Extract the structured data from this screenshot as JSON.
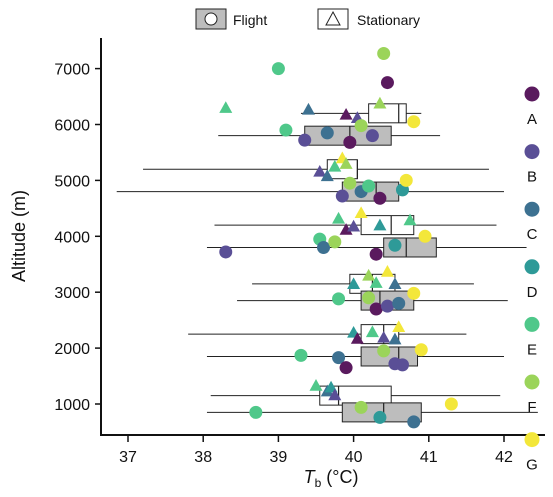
{
  "legend": {
    "flight_label": "Flight",
    "stationary_label": "Stationary"
  },
  "colors": {
    "A": "#5a1a5e",
    "B": "#5a4f96",
    "C": "#3d7191",
    "D": "#2e9a98",
    "E": "#4fc88a",
    "F": "#9bd45a",
    "G": "#f3e73a",
    "box_flight": "#bdbdbd",
    "box_stationary": "#ffffff"
  },
  "chart_data": {
    "type": "box",
    "xlabel": "T",
    "xlabel_sub": "b",
    "xlabel_unit": " (°C)",
    "ylabel": "Altitude (m)",
    "xlim": [
      36.6,
      42.6
    ],
    "ylim": [
      500,
      7500
    ],
    "x_ticks": [
      37,
      38,
      39,
      40,
      41,
      42
    ],
    "y_ticks": [
      1000,
      2000,
      3000,
      4000,
      5000,
      6000,
      7000
    ],
    "group_legend": {
      "labels": [
        "A",
        "B",
        "C",
        "D",
        "E",
        "F",
        "G"
      ],
      "markers": [
        "A",
        "B",
        "C",
        "D",
        "E",
        "F",
        "G"
      ]
    },
    "boxes": [
      {
        "mode": "stationary",
        "y": 1150,
        "whisker_low": 38.1,
        "q1": 39.55,
        "median": 39.8,
        "q3": 40.5,
        "whisker_high": 41.95
      },
      {
        "mode": "flight",
        "y": 850,
        "whisker_low": 38.05,
        "q1": 39.85,
        "median": 40.4,
        "q3": 40.9,
        "whisker_high": 42.45
      },
      {
        "mode": "stationary",
        "y": 2250,
        "whisker_low": 37.8,
        "q1": 40.1,
        "median": 40.4,
        "q3": 40.6,
        "whisker_high": 41.5
      },
      {
        "mode": "flight",
        "y": 1850,
        "whisker_low": 38.05,
        "q1": 40.1,
        "median": 40.6,
        "q3": 40.85,
        "whisker_high": 42.0
      },
      {
        "mode": "stationary",
        "y": 3150,
        "whisker_low": 38.65,
        "q1": 39.95,
        "median": 40.25,
        "q3": 40.55,
        "whisker_high": 41.6
      },
      {
        "mode": "flight",
        "y": 2850,
        "whisker_low": 38.45,
        "q1": 40.1,
        "median": 40.35,
        "q3": 40.8,
        "whisker_high": 42.05
      },
      {
        "mode": "stationary",
        "y": 4200,
        "whisker_low": 38.15,
        "q1": 40.1,
        "median": 40.5,
        "q3": 40.8,
        "whisker_high": 41.9
      },
      {
        "mode": "flight",
        "y": 3800,
        "whisker_low": 38.05,
        "q1": 40.4,
        "median": 40.7,
        "q3": 41.1,
        "whisker_high": 42.3
      },
      {
        "mode": "stationary",
        "y": 5200,
        "whisker_low": 37.2,
        "q1": 39.65,
        "median": 40.05,
        "q3": 40.05,
        "whisker_high": 41.8
      },
      {
        "mode": "flight",
        "y": 4800,
        "whisker_low": 36.85,
        "q1": 39.85,
        "median": 40.3,
        "q3": 40.6,
        "whisker_high": 42.0
      },
      {
        "mode": "stationary",
        "y": 6200,
        "whisker_low": 39.3,
        "q1": 40.2,
        "median": 40.6,
        "q3": 40.7,
        "whisker_high": 40.9
      },
      {
        "mode": "flight",
        "y": 5800,
        "whisker_low": 38.2,
        "q1": 39.35,
        "median": 39.95,
        "q3": 40.5,
        "whisker_high": 41.15
      }
    ],
    "points_flight": [
      {
        "x": 38.7,
        "y": 850,
        "g": "E"
      },
      {
        "x": 40.1,
        "y": 940,
        "g": "F"
      },
      {
        "x": 40.35,
        "y": 760,
        "g": "D"
      },
      {
        "x": 40.8,
        "y": 680,
        "g": "C"
      },
      {
        "x": 41.3,
        "y": 1000,
        "g": "G"
      },
      {
        "x": 39.3,
        "y": 1870,
        "g": "E"
      },
      {
        "x": 39.8,
        "y": 1830,
        "g": "C"
      },
      {
        "x": 39.9,
        "y": 1650,
        "g": "A"
      },
      {
        "x": 40.4,
        "y": 1950,
        "g": "F"
      },
      {
        "x": 40.55,
        "y": 1720,
        "g": "B"
      },
      {
        "x": 40.65,
        "y": 1700,
        "g": "B"
      },
      {
        "x": 40.9,
        "y": 1970,
        "g": "G"
      },
      {
        "x": 39.8,
        "y": 2880,
        "g": "E"
      },
      {
        "x": 40.2,
        "y": 2900,
        "g": "F"
      },
      {
        "x": 40.3,
        "y": 2700,
        "g": "A"
      },
      {
        "x": 40.45,
        "y": 2750,
        "g": "B"
      },
      {
        "x": 40.6,
        "y": 2800,
        "g": "C"
      },
      {
        "x": 40.8,
        "y": 2980,
        "g": "G"
      },
      {
        "x": 38.3,
        "y": 3720,
        "g": "B"
      },
      {
        "x": 39.55,
        "y": 3950,
        "g": "E"
      },
      {
        "x": 39.6,
        "y": 3800,
        "g": "C"
      },
      {
        "x": 39.75,
        "y": 3900,
        "g": "F"
      },
      {
        "x": 40.3,
        "y": 3680,
        "g": "A"
      },
      {
        "x": 40.55,
        "y": 3840,
        "g": "D"
      },
      {
        "x": 40.95,
        "y": 4000,
        "g": "G"
      },
      {
        "x": 39.85,
        "y": 4720,
        "g": "B"
      },
      {
        "x": 39.95,
        "y": 4950,
        "g": "F"
      },
      {
        "x": 40.1,
        "y": 4800,
        "g": "C"
      },
      {
        "x": 40.2,
        "y": 4900,
        "g": "E"
      },
      {
        "x": 40.35,
        "y": 4680,
        "g": "A"
      },
      {
        "x": 40.65,
        "y": 4830,
        "g": "D"
      },
      {
        "x": 40.7,
        "y": 5000,
        "g": "G"
      },
      {
        "x": 39.0,
        "y": 7000,
        "g": "E"
      },
      {
        "x": 40.4,
        "y": 7270,
        "g": "F"
      },
      {
        "x": 40.45,
        "y": 6750,
        "g": "A"
      },
      {
        "x": 39.1,
        "y": 5900,
        "g": "E"
      },
      {
        "x": 39.35,
        "y": 5720,
        "g": "B"
      },
      {
        "x": 39.65,
        "y": 5850,
        "g": "C"
      },
      {
        "x": 39.95,
        "y": 5680,
        "g": "A"
      },
      {
        "x": 40.1,
        "y": 5980,
        "g": "F"
      },
      {
        "x": 40.25,
        "y": 5800,
        "g": "B"
      },
      {
        "x": 40.8,
        "y": 6050,
        "g": "G"
      }
    ],
    "points_stationary": [
      {
        "x": 39.5,
        "y": 1330,
        "g": "E"
      },
      {
        "x": 39.65,
        "y": 1230,
        "g": "C"
      },
      {
        "x": 39.7,
        "y": 1300,
        "g": "D"
      },
      {
        "x": 39.75,
        "y": 1160,
        "g": "B"
      },
      {
        "x": 40.0,
        "y": 2280,
        "g": "D"
      },
      {
        "x": 40.05,
        "y": 2170,
        "g": "A"
      },
      {
        "x": 40.25,
        "y": 2290,
        "g": "E"
      },
      {
        "x": 40.4,
        "y": 2190,
        "g": "B"
      },
      {
        "x": 40.55,
        "y": 2160,
        "g": "C"
      },
      {
        "x": 40.6,
        "y": 2380,
        "g": "G"
      },
      {
        "x": 40.0,
        "y": 3150,
        "g": "D"
      },
      {
        "x": 40.2,
        "y": 3300,
        "g": "F"
      },
      {
        "x": 40.3,
        "y": 3170,
        "g": "E"
      },
      {
        "x": 40.45,
        "y": 3370,
        "g": "G"
      },
      {
        "x": 40.55,
        "y": 3150,
        "g": "C"
      },
      {
        "x": 39.8,
        "y": 4320,
        "g": "E"
      },
      {
        "x": 39.9,
        "y": 4120,
        "g": "A"
      },
      {
        "x": 40.0,
        "y": 4180,
        "g": "B"
      },
      {
        "x": 40.1,
        "y": 4420,
        "g": "G"
      },
      {
        "x": 40.35,
        "y": 4200,
        "g": "D"
      },
      {
        "x": 40.75,
        "y": 4290,
        "g": "E"
      },
      {
        "x": 39.55,
        "y": 5160,
        "g": "B"
      },
      {
        "x": 39.65,
        "y": 5080,
        "g": "C"
      },
      {
        "x": 39.75,
        "y": 5250,
        "g": "E"
      },
      {
        "x": 39.85,
        "y": 5400,
        "g": "G"
      },
      {
        "x": 39.9,
        "y": 5300,
        "g": "F"
      },
      {
        "x": 38.3,
        "y": 6300,
        "g": "E"
      },
      {
        "x": 39.4,
        "y": 6270,
        "g": "C"
      },
      {
        "x": 39.9,
        "y": 6180,
        "g": "A"
      },
      {
        "x": 40.05,
        "y": 6120,
        "g": "B"
      },
      {
        "x": 40.35,
        "y": 6380,
        "g": "F"
      }
    ]
  }
}
